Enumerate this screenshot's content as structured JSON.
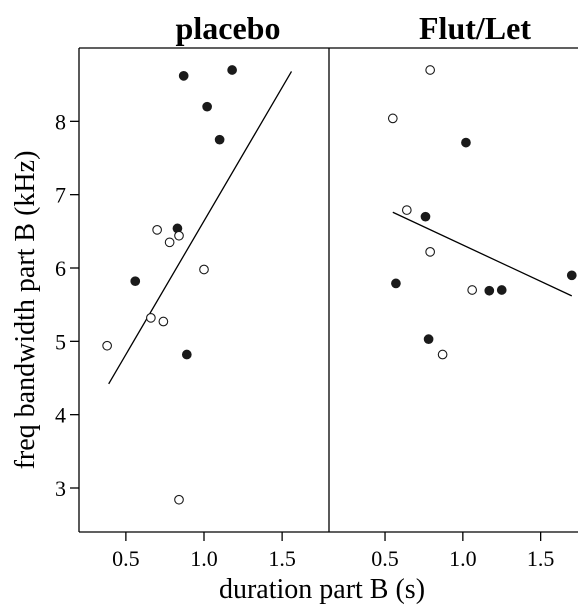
{
  "chart_data": [
    {
      "type": "scatter",
      "title": "placebo",
      "xlabel": "duration part B (s)",
      "ylabel": "freq bandwidth part B (kHz)",
      "xlim": [
        0.2,
        1.8
      ],
      "ylim": [
        2.4,
        9.0
      ],
      "xticks": [
        "0.5",
        "1.0",
        "1.5"
      ],
      "yticks": [
        "3",
        "4",
        "5",
        "6",
        "7",
        "8"
      ],
      "series": [
        {
          "marker": "filled",
          "points": [
            {
              "x": 0.87,
              "y": 8.62
            },
            {
              "x": 1.18,
              "y": 8.7
            },
            {
              "x": 1.02,
              "y": 8.2
            },
            {
              "x": 1.1,
              "y": 7.75
            },
            {
              "x": 0.83,
              "y": 6.54
            },
            {
              "x": 0.56,
              "y": 5.82
            },
            {
              "x": 0.89,
              "y": 4.82
            }
          ]
        },
        {
          "marker": "open",
          "points": [
            {
              "x": 0.7,
              "y": 6.52
            },
            {
              "x": 0.84,
              "y": 6.44
            },
            {
              "x": 0.78,
              "y": 6.35
            },
            {
              "x": 1.0,
              "y": 5.98
            },
            {
              "x": 0.66,
              "y": 5.32
            },
            {
              "x": 0.74,
              "y": 5.27
            },
            {
              "x": 0.38,
              "y": 4.94
            },
            {
              "x": 0.84,
              "y": 2.84
            }
          ]
        }
      ],
      "trend_line": [
        {
          "x": 0.39,
          "y": 4.42
        },
        {
          "x": 1.56,
          "y": 8.68
        }
      ]
    },
    {
      "type": "scatter",
      "title": "Flut/Let",
      "xlabel": "duration part B (s)",
      "xlim": [
        0.14,
        1.74
      ],
      "ylim": [
        2.4,
        9.0
      ],
      "xticks": [
        "0.5",
        "1.0",
        "1.5"
      ],
      "series": [
        {
          "marker": "filled",
          "points": [
            {
              "x": 1.02,
              "y": 7.71
            },
            {
              "x": 0.76,
              "y": 6.7
            },
            {
              "x": 1.7,
              "y": 5.9
            },
            {
              "x": 0.57,
              "y": 5.79
            },
            {
              "x": 1.17,
              "y": 5.69
            },
            {
              "x": 1.25,
              "y": 5.7
            },
            {
              "x": 0.78,
              "y": 5.03
            }
          ]
        },
        {
          "marker": "open",
          "points": [
            {
              "x": 0.79,
              "y": 8.7
            },
            {
              "x": 0.55,
              "y": 8.04
            },
            {
              "x": 0.64,
              "y": 6.79
            },
            {
              "x": 0.79,
              "y": 6.22
            },
            {
              "x": 1.06,
              "y": 5.7
            },
            {
              "x": 0.87,
              "y": 4.82
            }
          ]
        }
      ],
      "trend_line": [
        {
          "x": 0.55,
          "y": 6.76
        },
        {
          "x": 1.7,
          "y": 5.62
        }
      ]
    }
  ]
}
